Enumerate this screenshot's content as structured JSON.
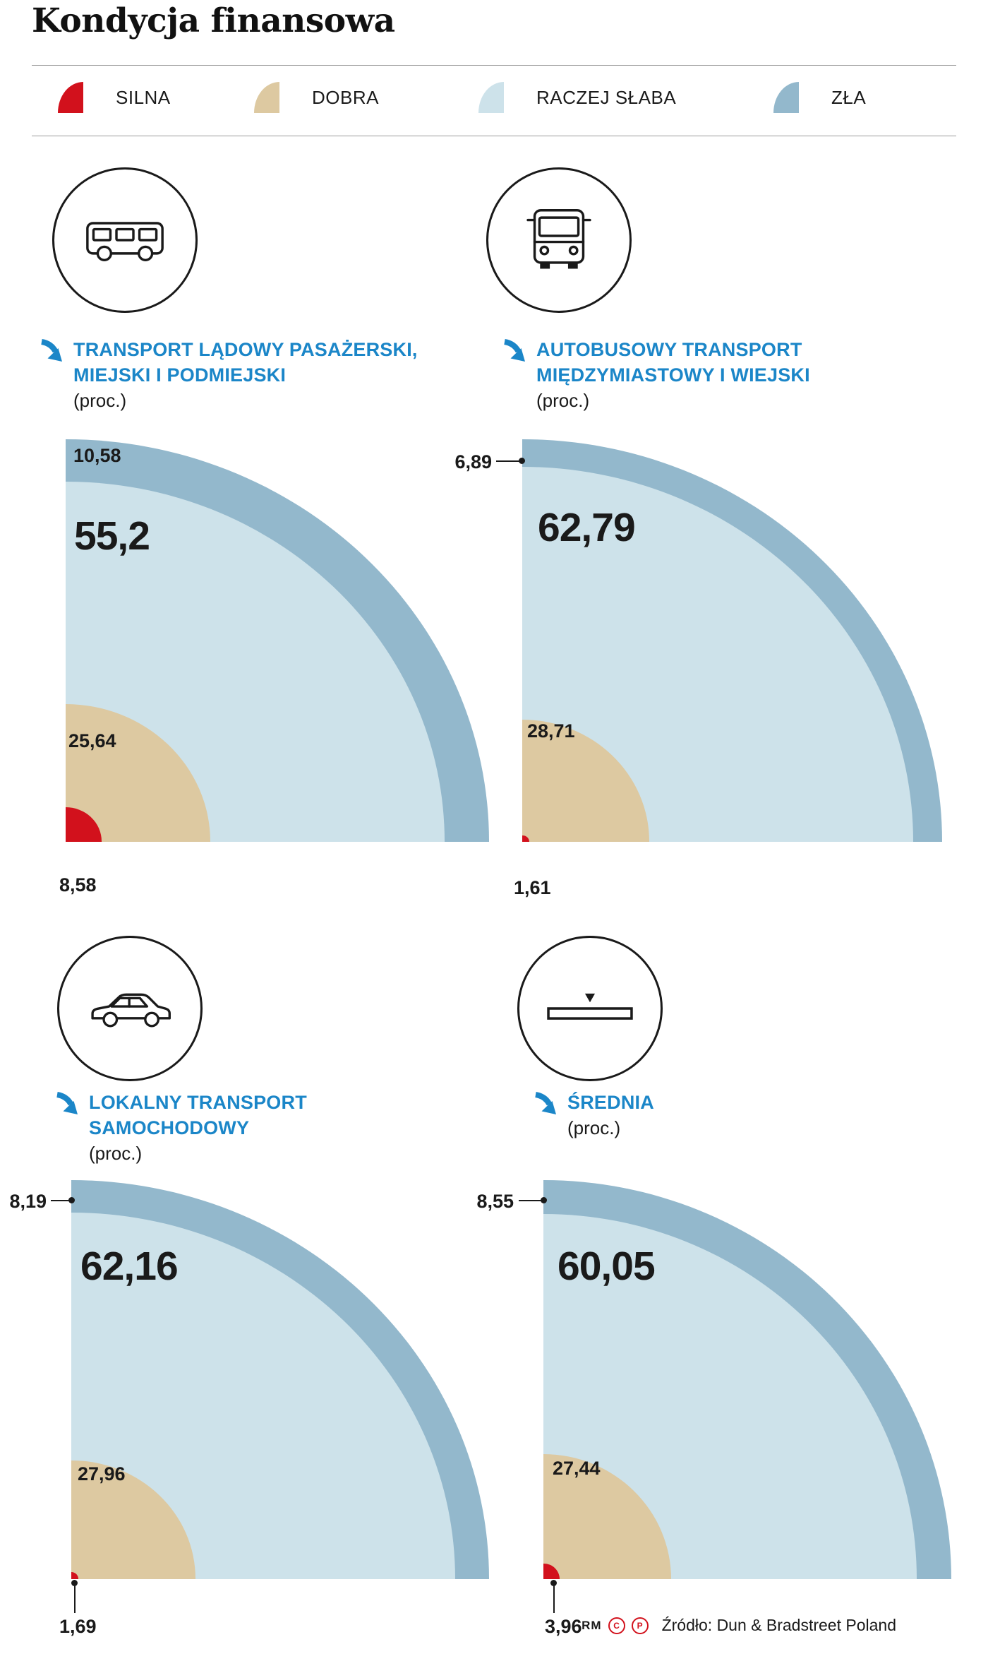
{
  "title": "Kondycja finansowa",
  "colors": {
    "silna_red": "#d2111c",
    "dobra_tan": "#ddc9a1",
    "raczej_slaba_light_blue": "#cde2ea",
    "zla_steel_blue": "#93b8cc",
    "heading_blue": "#1b86c8"
  },
  "legend": {
    "items": [
      {
        "label": "SILNA",
        "color": "#d2111c"
      },
      {
        "label": "DOBRA",
        "color": "#ddc9a1"
      },
      {
        "label": "RACZEJ SŁABA",
        "color": "#cde2ea"
      },
      {
        "label": "ZŁA",
        "color": "#93b8cc"
      }
    ]
  },
  "chart_data": [
    {
      "type": "pie",
      "variant": "nested-quarter-radial",
      "icon": "minibus-icon",
      "title_lines": [
        "TRANSPORT LĄDOWY PASAŻERSKI,",
        "MIEJSKI I PODMIEJSKI"
      ],
      "unit": "(proc.)",
      "categories": [
        "SILNA",
        "DOBRA",
        "RACZEJ SŁABA",
        "ZŁA"
      ],
      "values": [
        8.58,
        25.64,
        55.2,
        10.58
      ],
      "labels": [
        "8,58",
        "25,64",
        "55,2",
        "10,58"
      ]
    },
    {
      "type": "pie",
      "variant": "nested-quarter-radial",
      "icon": "bus-icon",
      "title_lines": [
        "AUTOBUSOWY TRANSPORT",
        "MIĘDZYMIASTOWY I WIEJSKI"
      ],
      "unit": "(proc.)",
      "categories": [
        "SILNA",
        "DOBRA",
        "RACZEJ SŁABA",
        "ZŁA"
      ],
      "values": [
        1.61,
        28.71,
        62.79,
        6.89
      ],
      "labels": [
        "1,61",
        "28,71",
        "62,79",
        "6,89"
      ]
    },
    {
      "type": "pie",
      "variant": "nested-quarter-radial",
      "icon": "car-icon",
      "title_lines": [
        "LOKALNY TRANSPORT",
        "SAMOCHODOWY"
      ],
      "unit": "(proc.)",
      "categories": [
        "SILNA",
        "DOBRA",
        "RACZEJ SŁABA",
        "ZŁA"
      ],
      "values": [
        1.69,
        27.96,
        62.16,
        8.19
      ],
      "labels": [
        "1,69",
        "27,96",
        "62,16",
        "8,19"
      ]
    },
    {
      "type": "pie",
      "variant": "nested-quarter-radial",
      "icon": "average-icon",
      "title_lines": [
        "ŚREDNIA"
      ],
      "unit": "(proc.)",
      "categories": [
        "SILNA",
        "DOBRA",
        "RACZEJ SŁABA",
        "ZŁA"
      ],
      "values": [
        3.96,
        27.44,
        60.05,
        8.55
      ],
      "labels": [
        "3,96",
        "27,44",
        "60,05",
        "8,55"
      ]
    }
  ],
  "footer": {
    "credit": "RM",
    "rights_c": "C",
    "rights_p": "P",
    "source": "Źródło: Dun & Bradstreet Poland"
  }
}
